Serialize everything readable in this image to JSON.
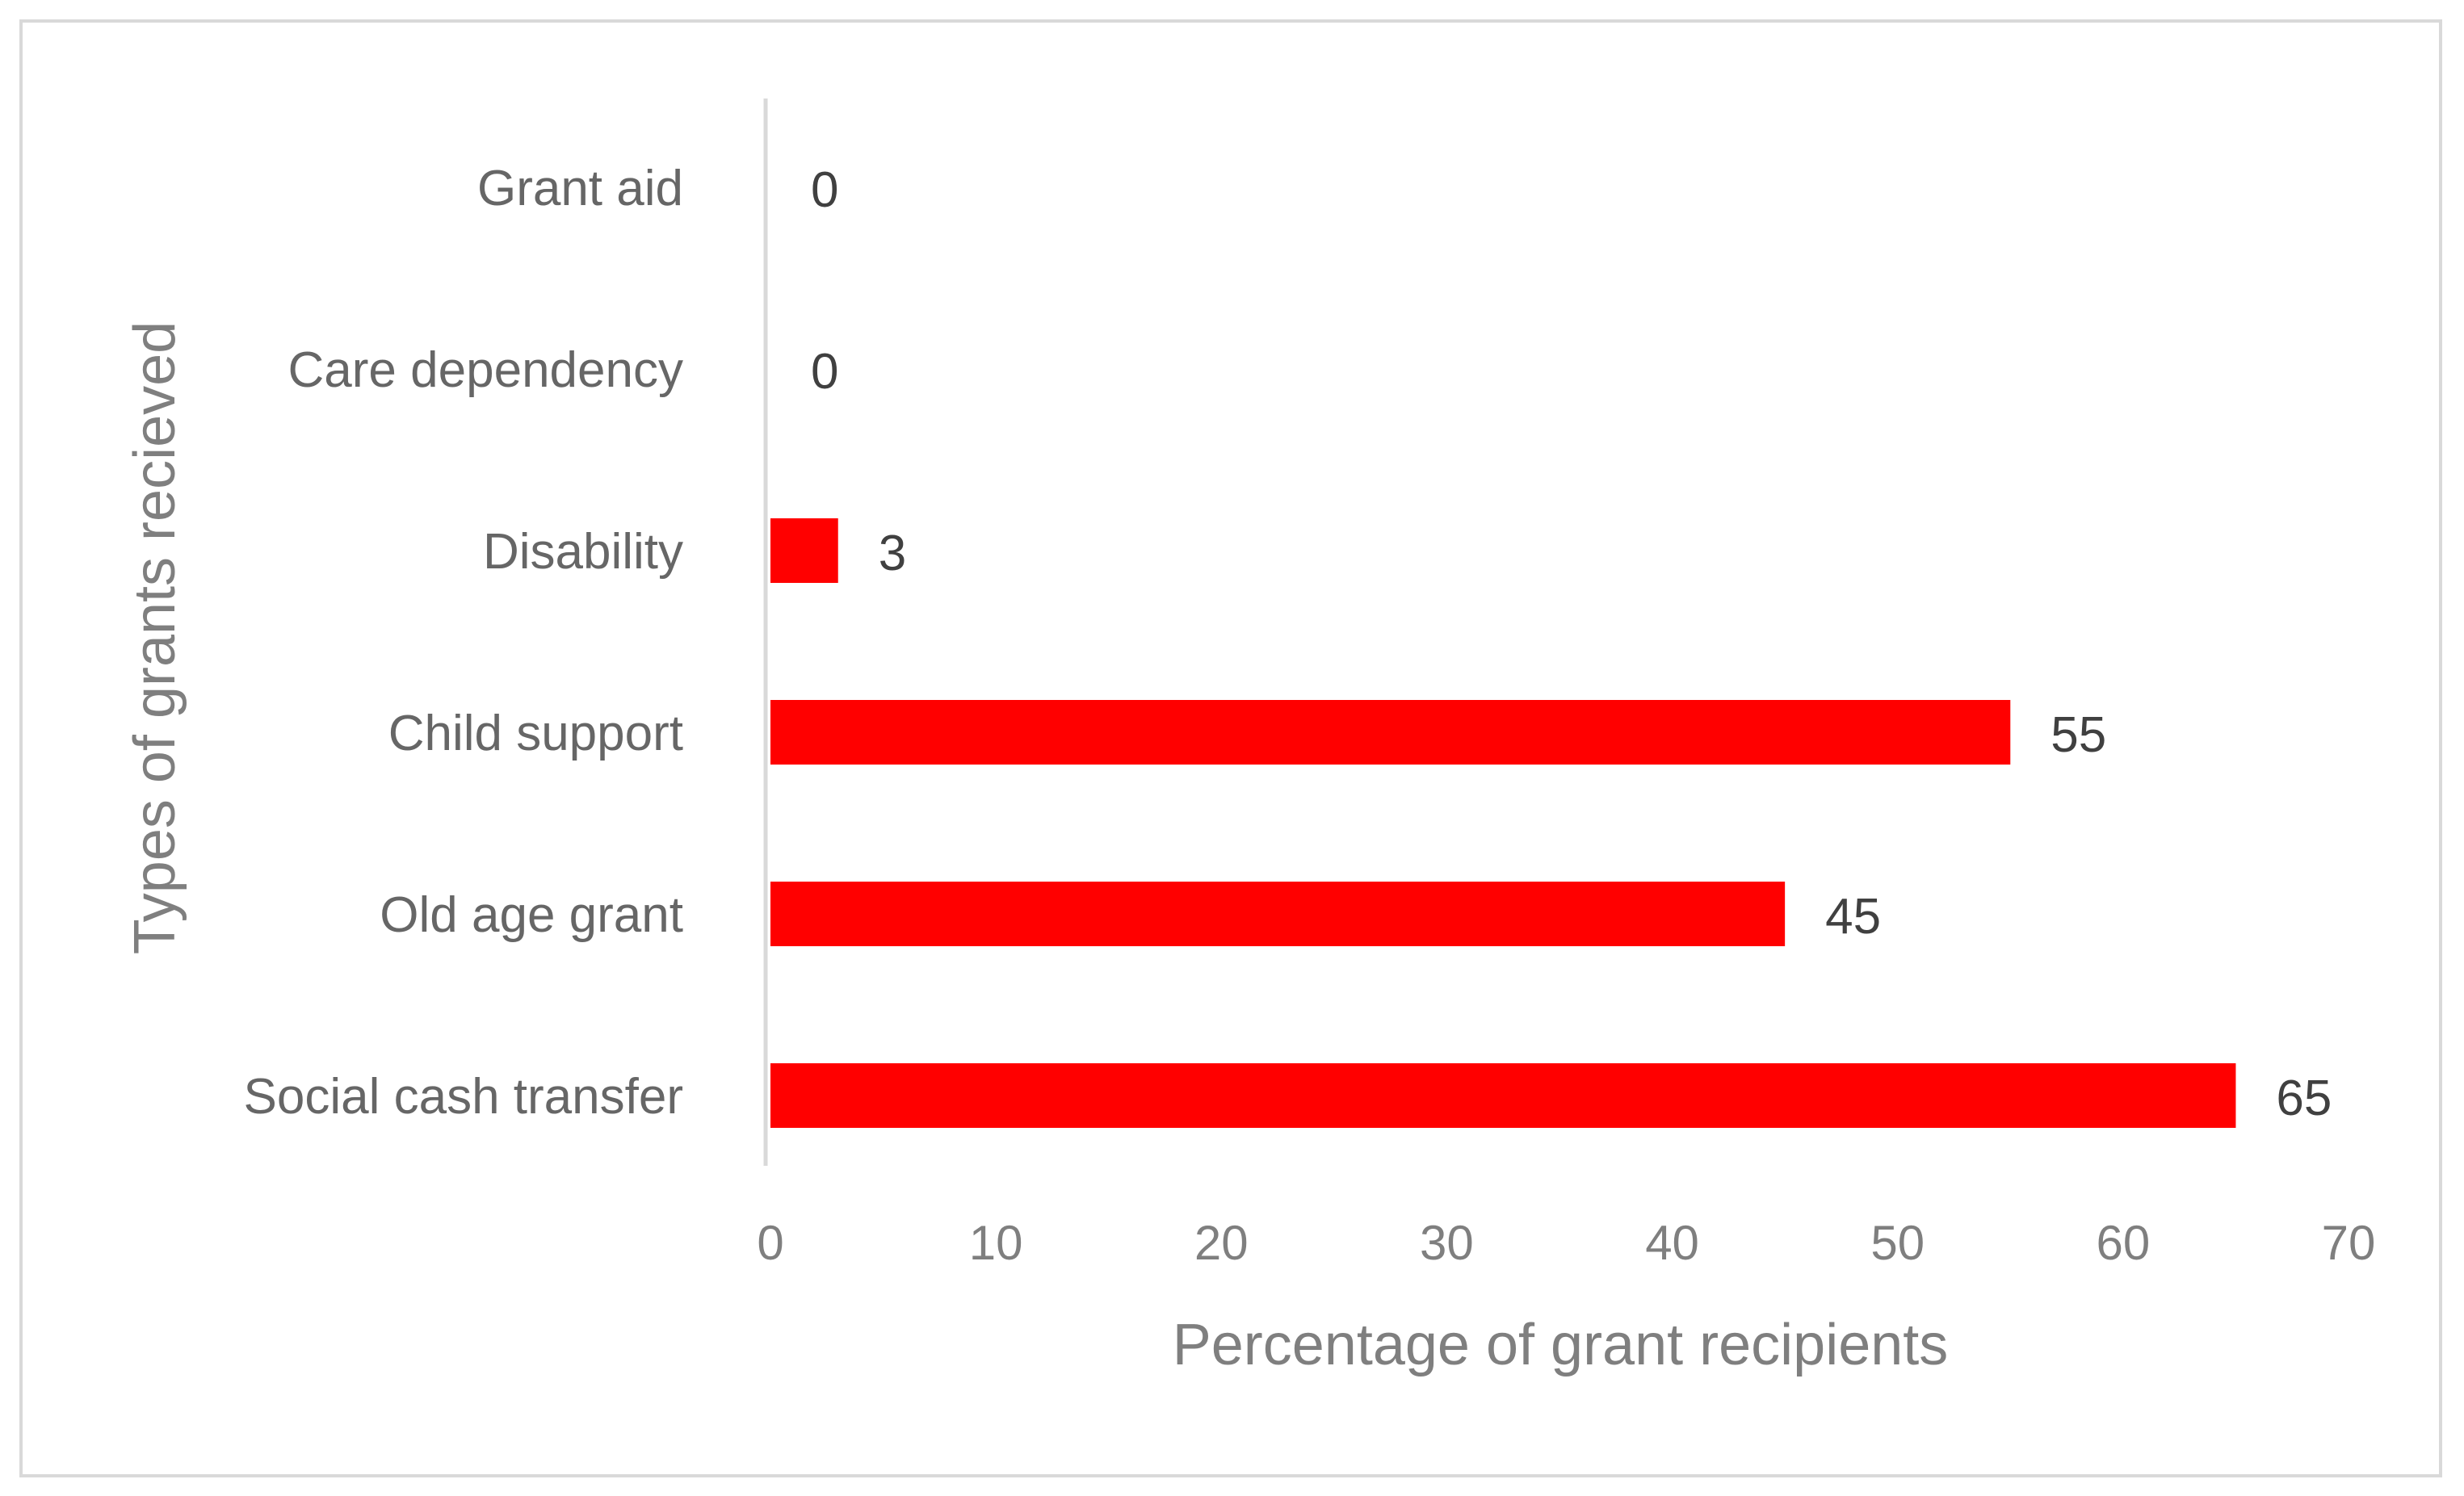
{
  "chart_data": {
    "type": "bar",
    "orientation": "horizontal",
    "title": "",
    "xlabel": "Percentage of grant recipients",
    "ylabel": "Types of grants recieved",
    "categories": [
      "Grant aid",
      "Care dependency",
      "Disability",
      "Child support",
      "Old age grant",
      "Social cash transfer"
    ],
    "values": [
      0,
      0,
      3,
      55,
      45,
      65
    ],
    "xlim": [
      0,
      70
    ],
    "xticks": [
      0,
      10,
      20,
      30,
      40,
      50,
      60,
      70
    ],
    "grid": false,
    "legend": "none",
    "bar_color": "#ff0000",
    "axis_color": "#d9d9d9"
  }
}
